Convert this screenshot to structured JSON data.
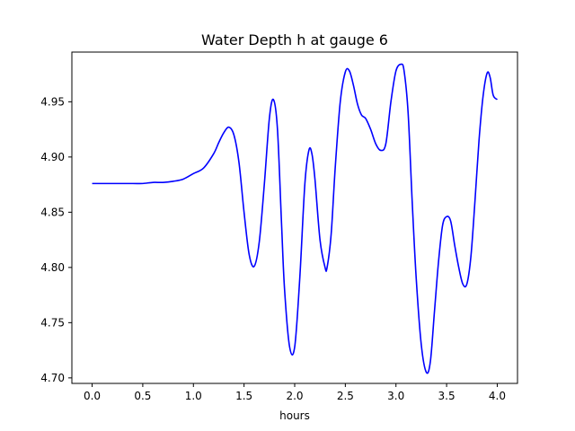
{
  "chart_data": {
    "type": "line",
    "title": "Water Depth h at gauge 6",
    "xlabel": "hours",
    "ylabel": "",
    "xlim": [
      -0.2,
      4.2
    ],
    "ylim": [
      4.695,
      4.995
    ],
    "grid": false,
    "xticks": [
      0.0,
      0.5,
      1.0,
      1.5,
      2.0,
      2.5,
      3.0,
      3.5,
      4.0
    ],
    "xtick_labels": [
      "0.0",
      "0.5",
      "1.0",
      "1.5",
      "2.0",
      "2.5",
      "3.0",
      "3.5",
      "4.0"
    ],
    "yticks": [
      4.7,
      4.75,
      4.8,
      4.85,
      4.9,
      4.95
    ],
    "ytick_labels": [
      "4.70",
      "4.75",
      "4.80",
      "4.85",
      "4.90",
      "4.95"
    ],
    "series": [
      {
        "color": "#0000ff",
        "x": [
          0.0,
          0.2,
          0.4,
          0.5,
          0.6,
          0.7,
          0.8,
          0.9,
          1.0,
          1.1,
          1.2,
          1.25,
          1.3,
          1.35,
          1.4,
          1.45,
          1.5,
          1.55,
          1.6,
          1.65,
          1.7,
          1.75,
          1.79,
          1.83,
          1.87,
          1.9,
          1.95,
          2.0,
          2.05,
          2.1,
          2.14,
          2.17,
          2.2,
          2.25,
          2.3,
          2.32,
          2.36,
          2.4,
          2.45,
          2.5,
          2.54,
          2.58,
          2.62,
          2.66,
          2.7,
          2.75,
          2.8,
          2.85,
          2.9,
          2.95,
          3.0,
          3.05,
          3.08,
          3.12,
          3.16,
          3.2,
          3.25,
          3.3,
          3.34,
          3.38,
          3.42,
          3.46,
          3.5,
          3.54,
          3.58,
          3.62,
          3.66,
          3.7,
          3.74,
          3.78,
          3.82,
          3.86,
          3.9,
          3.93,
          3.96,
          4.0
        ],
        "y": [
          4.876,
          4.876,
          4.876,
          4.876,
          4.877,
          4.877,
          4.878,
          4.88,
          4.885,
          4.89,
          4.903,
          4.913,
          4.922,
          4.927,
          4.92,
          4.895,
          4.85,
          4.812,
          4.801,
          4.823,
          4.875,
          4.935,
          4.952,
          4.925,
          4.84,
          4.78,
          4.728,
          4.728,
          4.79,
          4.875,
          4.906,
          4.903,
          4.88,
          4.825,
          4.8,
          4.8,
          4.83,
          4.89,
          4.95,
          4.977,
          4.978,
          4.965,
          4.948,
          4.938,
          4.935,
          4.925,
          4.912,
          4.906,
          4.912,
          4.95,
          4.978,
          4.984,
          4.978,
          4.94,
          4.86,
          4.79,
          4.73,
          4.705,
          4.715,
          4.76,
          4.805,
          4.838,
          4.846,
          4.842,
          4.82,
          4.8,
          4.785,
          4.785,
          4.81,
          4.86,
          4.915,
          4.955,
          4.976,
          4.972,
          4.956,
          4.952
        ]
      }
    ]
  }
}
